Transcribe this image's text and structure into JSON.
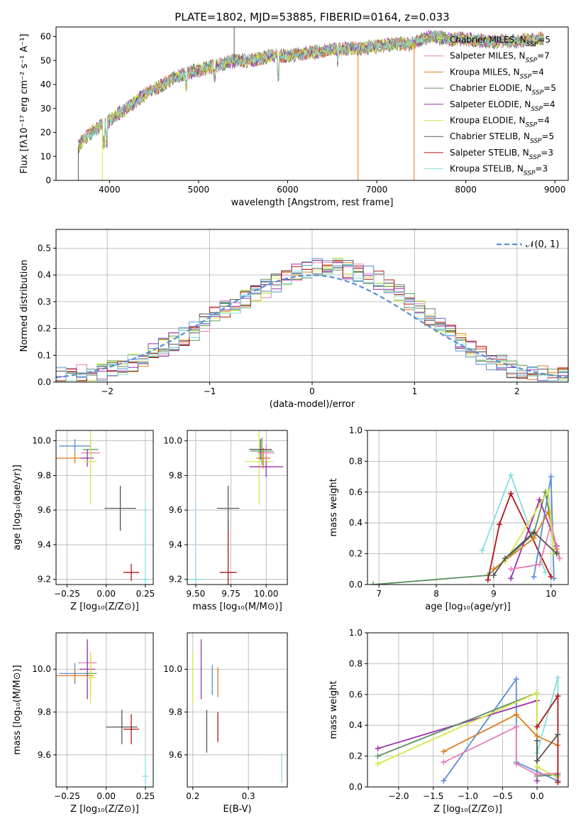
{
  "figure": {
    "title": "PLATE=1802, MJD=53885, FIBERID=0164, z=0.033"
  },
  "colors": {
    "Chabrier MILES": "#5fa35f",
    "Salpeter MILES": "#e67fb6",
    "Kroupa MILES": "#e07b1e",
    "Chabrier ELODIE": "#5c8f5c",
    "Salpeter ELODIE": "#9b2fb0",
    "Kroupa ELODIE": "#d4e84a",
    "Chabrier STELIB": "#555555",
    "Salpeter STELIB": "#b01515",
    "Kroupa STELIB": "#86dde0",
    "blue_line": "#5b8dd6",
    "grid": "#b0b0b0"
  },
  "chart_data": [
    {
      "id": "spectrum",
      "type": "line",
      "title": "PLATE=1802, MJD=53885, FIBERID=0164, z=0.033",
      "xlabel": "wavelength [Angstrom, rest frame]",
      "ylabel": "Flux [fλ10⁻¹⁷ erg cm⁻² s⁻¹ A⁻¹]",
      "xlim": [
        3400,
        9150
      ],
      "ylim": [
        0,
        64
      ],
      "xticks": [
        4000,
        5000,
        6000,
        7000,
        8000,
        9000
      ],
      "yticks": [
        0,
        10,
        20,
        30,
        40,
        50,
        60
      ],
      "grid": false,
      "legend_position": "top-right",
      "continuum": {
        "x": [
          3650,
          3700,
          3800,
          3900,
          4000,
          4100,
          4200,
          4300,
          4400,
          4500,
          4600,
          4700,
          4800,
          4900,
          5000,
          5200,
          5400,
          5600,
          5800,
          6000,
          6200,
          6400,
          6600,
          6800,
          7000,
          7200,
          7400,
          7600,
          7800,
          8000,
          8200,
          8400,
          8600,
          8800
        ],
        "y": [
          14,
          17,
          20,
          23,
          25,
          28,
          30,
          33,
          36,
          38,
          40,
          42,
          44,
          45,
          46,
          48,
          50,
          50,
          52,
          52,
          53,
          54,
          55,
          55,
          56,
          57,
          57,
          60,
          59,
          59,
          58,
          58,
          58,
          59
        ]
      },
      "dropouts": [
        {
          "x": 3650,
          "y": 0
        },
        {
          "x": 3920,
          "y": 0
        },
        {
          "x": 5400,
          "y": 64
        },
        {
          "x": 6790,
          "y": 0
        },
        {
          "x": 7420,
          "y": 0
        }
      ],
      "series": [
        {
          "name": "Chabrier MILES, N_SSP=5",
          "label_main": "Chabrier MILES, N",
          "label_sub": "SSP",
          "label_end": "=5",
          "color_key": "Chabrier MILES"
        },
        {
          "name": "Salpeter MILES, N_SSP=7",
          "label_main": "Salpeter MILES, N",
          "label_sub": "SSP",
          "label_end": "=7",
          "color_key": "Salpeter MILES"
        },
        {
          "name": "Kroupa MILES, N_SSP=4",
          "label_main": "Kroupa MILES, N",
          "label_sub": "SSP",
          "label_end": "=4",
          "color_key": "Kroupa MILES"
        },
        {
          "name": "Chabrier ELODIE, N_SSP=5",
          "label_main": "Chabrier ELODIE, N",
          "label_sub": "SSP",
          "label_end": "=5",
          "color_key": "Chabrier ELODIE"
        },
        {
          "name": "Salpeter ELODIE, N_SSP=4",
          "label_main": "Salpeter ELODIE, N",
          "label_sub": "SSP",
          "label_end": "=4",
          "color_key": "Salpeter ELODIE"
        },
        {
          "name": "Kroupa ELODIE, N_SSP=4",
          "label_main": "Kroupa ELODIE, N",
          "label_sub": "SSP",
          "label_end": "=4",
          "color_key": "Kroupa ELODIE"
        },
        {
          "name": "Chabrier STELIB, N_SSP=5",
          "label_main": "Chabrier STELIB, N",
          "label_sub": "SSP",
          "label_end": "=5",
          "color_key": "Chabrier STELIB"
        },
        {
          "name": "Salpeter STELIB, N_SSP=3",
          "label_main": "Salpeter STELIB, N",
          "label_sub": "SSP",
          "label_end": "=3",
          "color_key": "Salpeter STELIB"
        },
        {
          "name": "Kroupa STELIB, N_SSP=3",
          "label_main": "Kroupa STELIB, N",
          "label_sub": "SSP",
          "label_end": "=3",
          "color_key": "Kroupa STELIB"
        }
      ]
    },
    {
      "id": "residuals",
      "type": "line",
      "xlabel": "(data-model)/error",
      "ylabel": "Normed distribution",
      "xlim": [
        -2.5,
        2.5
      ],
      "ylim": [
        0,
        0.57
      ],
      "xticks": [
        -2,
        -1,
        0,
        1,
        2
      ],
      "xtick_labels": [
        "−2",
        "−1",
        "0",
        "1",
        "2"
      ],
      "yticks": [
        0.0,
        0.1,
        0.2,
        0.3,
        0.4,
        0.5
      ],
      "grid": true,
      "legend_position": "top-right",
      "legend": [
        {
          "name": "𝒩(0, 1)",
          "style": "dashed",
          "color_key": "blue_line"
        }
      ],
      "bin_width": 0.1,
      "bin_start": -2.5,
      "histogram_base": [
        0.02,
        0.02,
        0.03,
        0.03,
        0.04,
        0.05,
        0.06,
        0.07,
        0.09,
        0.11,
        0.13,
        0.15,
        0.17,
        0.19,
        0.22,
        0.25,
        0.27,
        0.29,
        0.31,
        0.33,
        0.35,
        0.37,
        0.39,
        0.41,
        0.42,
        0.43,
        0.43,
        0.43,
        0.42,
        0.41,
        0.4,
        0.38,
        0.36,
        0.33,
        0.3,
        0.27,
        0.24,
        0.21,
        0.18,
        0.15,
        0.12,
        0.1,
        0.08,
        0.07,
        0.05,
        0.04,
        0.03,
        0.03,
        0.02,
        0.02
      ]
    },
    {
      "id": "age_vs_Z",
      "type": "scatter",
      "xlabel": "Z [log₁₀(Z/Z⊙)]",
      "ylabel": "age  [log₁₀(age/yr)]",
      "xlim": [
        -0.32,
        0.3
      ],
      "ylim": [
        9.17,
        10.06
      ],
      "xticks": [
        -0.25,
        0.0,
        0.25
      ],
      "xtick_labels": [
        "−0.25",
        "0.00",
        "0.25"
      ],
      "yticks": [
        9.2,
        9.4,
        9.6,
        9.8,
        10.0
      ],
      "grid": true,
      "points": [
        {
          "color_key": "blue_line",
          "x": -0.2,
          "y": 9.97,
          "xerr": 0.1,
          "yerr": 0.04
        },
        {
          "color_key": "Kroupa MILES",
          "x": -0.2,
          "y": 9.9,
          "xerr": 0.12,
          "yerr": 0.03
        },
        {
          "color_key": "Salpeter MILES",
          "x": -0.1,
          "y": 9.93,
          "xerr": 0.06,
          "yerr": 0.04
        },
        {
          "color_key": "Chabrier MILES",
          "x": -0.1,
          "y": 9.95,
          "xerr": 0.05,
          "yerr": 0.06
        },
        {
          "color_key": "Salpeter ELODIE",
          "x": -0.12,
          "y": 9.9,
          "xerr": 0.04,
          "yerr": 0.05
        },
        {
          "color_key": "Kroupa ELODIE",
          "x": -0.1,
          "y": 9.88,
          "xerr": 0.04,
          "yerr": 0.25
        },
        {
          "color_key": "Chabrier STELIB",
          "x": 0.09,
          "y": 9.61,
          "xerr": 0.1,
          "yerr": 0.13
        },
        {
          "color_key": "Salpeter STELIB",
          "x": 0.16,
          "y": 9.24,
          "xerr": 0.05,
          "yerr": 0.05
        },
        {
          "color_key": "Kroupa STELIB",
          "x": 0.25,
          "y": 9.2,
          "xerr": 0.02,
          "yerr": 0.45
        }
      ]
    },
    {
      "id": "age_vs_mass",
      "type": "scatter",
      "xlabel": "mass [log₁₀(M/M⊙)]",
      "xlim": [
        9.44,
        10.15
      ],
      "ylim": [
        9.17,
        10.06
      ],
      "xticks": [
        9.5,
        9.75,
        10.0
      ],
      "xtick_labels": [
        "9.50",
        "9.75",
        "10.00"
      ],
      "yticks": [
        9.2,
        9.4,
        9.6,
        9.8,
        10.0
      ],
      "grid": true,
      "points": [
        {
          "color_key": "Kroupa STELIB",
          "x": 9.5,
          "y": 9.2,
          "xerr": 0.06,
          "yerr": 0.45
        },
        {
          "color_key": "Salpeter STELIB",
          "x": 9.73,
          "y": 9.24,
          "xerr": 0.06,
          "yerr": 0.3
        },
        {
          "color_key": "Chabrier STELIB",
          "x": 9.73,
          "y": 9.61,
          "xerr": 0.08,
          "yerr": 0.13
        },
        {
          "color_key": "Kroupa ELODIE",
          "x": 9.95,
          "y": 9.88,
          "xerr": 0.1,
          "yerr": 0.25
        },
        {
          "color_key": "Salpeter ELODIE",
          "x": 10.0,
          "y": 9.85,
          "xerr": 0.12,
          "yerr": 0.06
        },
        {
          "color_key": "Chabrier MILES",
          "x": 9.97,
          "y": 9.94,
          "xerr": 0.08,
          "yerr": 0.08
        },
        {
          "color_key": "Salpeter MILES",
          "x": 10.0,
          "y": 9.93,
          "xerr": 0.06,
          "yerr": 0.05
        },
        {
          "color_key": "Kroupa MILES",
          "x": 9.98,
          "y": 9.9,
          "xerr": 0.05,
          "yerr": 0.06
        },
        {
          "color_key": "Chabrier STELIB",
          "x": 9.96,
          "y": 9.95,
          "xerr": 0.08,
          "yerr": 0.06
        }
      ]
    },
    {
      "id": "massweight_vs_age",
      "type": "line",
      "xlabel": "age  [log₁₀(age/yr)]",
      "ylabel": "mass weight",
      "xlim": [
        6.8,
        10.3
      ],
      "ylim": [
        0,
        1.0
      ],
      "xticks": [
        7,
        8,
        9,
        10
      ],
      "yticks": [
        0.0,
        0.2,
        0.4,
        0.6,
        0.8,
        1.0
      ],
      "grid": true,
      "series": [
        {
          "color_key": "Chabrier ELODIE",
          "x": [
            6.9,
            8.9,
            9.7,
            9.9,
            10.1
          ],
          "y": [
            0.0,
            0.06,
            0.33,
            0.6,
            0.21
          ]
        },
        {
          "color_key": "Kroupa STELIB",
          "x": [
            8.8,
            9.3,
            9.9
          ],
          "y": [
            0.22,
            0.71,
            0.08
          ]
        },
        {
          "color_key": "Salpeter STELIB",
          "x": [
            8.9,
            9.1,
            9.3,
            10.0
          ],
          "y": [
            0.03,
            0.39,
            0.59,
            0.05
          ]
        },
        {
          "color_key": "Salpeter ELODIE",
          "x": [
            9.3,
            9.8,
            10.1
          ],
          "y": [
            0.04,
            0.55,
            0.25
          ]
        },
        {
          "color_key": "blue_line",
          "x": [
            9.7,
            10.0,
            10.05
          ],
          "y": [
            0.05,
            0.7,
            0.04
          ]
        },
        {
          "color_key": "Kroupa MILES",
          "x": [
            9.0,
            9.7,
            9.95,
            10.1
          ],
          "y": [
            0.1,
            0.3,
            0.47,
            0.23
          ]
        },
        {
          "color_key": "Salpeter MILES",
          "x": [
            9.3,
            9.8,
            10.0,
            10.15
          ],
          "y": [
            0.1,
            0.13,
            0.39,
            0.17
          ]
        },
        {
          "color_key": "Kroupa ELODIE",
          "x": [
            9.2,
            9.95,
            10.05
          ],
          "y": [
            0.15,
            0.61,
            0.2
          ]
        },
        {
          "color_key": "Chabrier STELIB",
          "x": [
            9.0,
            9.2,
            9.7,
            10.1
          ],
          "y": [
            0.06,
            0.17,
            0.34,
            0.2
          ]
        }
      ]
    },
    {
      "id": "mass_vs_Z",
      "type": "scatter",
      "xlabel": "Z [log₁₀(Z/Z⊙)]",
      "ylabel": "mass [log₁₀(M/M⊙)]",
      "xlim": [
        -0.32,
        0.3
      ],
      "ylim": [
        9.45,
        10.17
      ],
      "xticks": [
        -0.25,
        0.0,
        0.25
      ],
      "xtick_labels": [
        "−0.25",
        "0.00",
        "0.25"
      ],
      "yticks": [
        9.6,
        9.8,
        10.0
      ],
      "grid": true,
      "points": [
        {
          "color_key": "blue_line",
          "x": -0.2,
          "y": 9.98,
          "xerr": 0.1,
          "yerr": 0.05
        },
        {
          "color_key": "Kroupa MILES",
          "x": -0.2,
          "y": 9.97,
          "xerr": 0.12,
          "yerr": 0.03
        },
        {
          "color_key": "Salpeter MILES",
          "x": -0.12,
          "y": 10.03,
          "xerr": 0.06,
          "yerr": 0.06
        },
        {
          "color_key": "Salpeter ELODIE",
          "x": -0.12,
          "y": 10.0,
          "xerr": 0.05,
          "yerr": 0.14
        },
        {
          "color_key": "Chabrier MILES",
          "x": -0.1,
          "y": 9.98,
          "xerr": 0.04,
          "yerr": 0.1
        },
        {
          "color_key": "Kroupa ELODIE",
          "x": -0.1,
          "y": 9.96,
          "xerr": 0.03,
          "yerr": 0.12
        },
        {
          "color_key": "Chabrier STELIB",
          "x": 0.1,
          "y": 9.73,
          "xerr": 0.1,
          "yerr": 0.08
        },
        {
          "color_key": "Salpeter STELIB",
          "x": 0.16,
          "y": 9.72,
          "xerr": 0.05,
          "yerr": 0.07
        },
        {
          "color_key": "Kroupa STELIB",
          "x": 0.25,
          "y": 9.5,
          "xerr": 0.02,
          "yerr": 0.1
        }
      ]
    },
    {
      "id": "mass_vs_EBV",
      "type": "scatter",
      "xlabel": "E(B-V)",
      "xlim": [
        0.19,
        0.37
      ],
      "ylim": [
        9.45,
        10.17
      ],
      "xticks": [
        0.2,
        0.3
      ],
      "xtick_labels": [
        "0.2",
        "0.3"
      ],
      "yticks": [
        9.6,
        9.8,
        10.0
      ],
      "grid": true,
      "points": [
        {
          "color_key": "Kroupa ELODIE",
          "x": 0.2,
          "y": 9.96,
          "xerr": 0.0,
          "yerr": 0.12
        },
        {
          "color_key": "Salpeter ELODIE",
          "x": 0.215,
          "y": 10.0,
          "xerr": 0.0,
          "yerr": 0.14
        },
        {
          "color_key": "Chabrier STELIB",
          "x": 0.225,
          "y": 9.71,
          "xerr": 0.0,
          "yerr": 0.1
        },
        {
          "color_key": "blue_line",
          "x": 0.235,
          "y": 9.95,
          "xerr": 0.0,
          "yerr": 0.07
        },
        {
          "color_key": "Kroupa MILES",
          "x": 0.245,
          "y": 9.94,
          "xerr": 0.0,
          "yerr": 0.07
        },
        {
          "color_key": "Salpeter STELIB",
          "x": 0.245,
          "y": 9.73,
          "xerr": 0.0,
          "yerr": 0.07
        },
        {
          "color_key": "Kroupa STELIB",
          "x": 0.36,
          "y": 9.54,
          "xerr": 0.0,
          "yerr": 0.07
        }
      ]
    },
    {
      "id": "massweight_vs_Z",
      "type": "line",
      "xlabel": "Z [log₁₀(Z/Z⊙)]",
      "ylabel": "mass weight",
      "xlim": [
        -2.45,
        0.45
      ],
      "ylim": [
        0,
        1.0
      ],
      "xticks": [
        -2.0,
        -1.5,
        -1.0,
        -0.5,
        0.0
      ],
      "xtick_labels": [
        "−2.0",
        "−1.5",
        "−1.0",
        "−0.5",
        "0.0"
      ],
      "yticks": [
        0.0,
        0.2,
        0.4,
        0.6,
        0.8,
        1.0
      ],
      "grid": true,
      "series": [
        {
          "color_key": "blue_line",
          "x": [
            -1.35,
            -0.3,
            -0.3,
            0.3
          ],
          "y": [
            0.04,
            0.7,
            0.16,
            0.04
          ]
        },
        {
          "color_key": "Salpeter ELODIE",
          "x": [
            -2.3,
            0.0,
            0.0
          ],
          "y": [
            0.25,
            0.56,
            0.04
          ]
        },
        {
          "color_key": "Chabrier ELODIE",
          "x": [
            -2.3,
            0.0,
            0.0,
            0.3
          ],
          "y": [
            0.2,
            0.61,
            0.07,
            0.08
          ]
        },
        {
          "color_key": "Kroupa ELODIE",
          "x": [
            -2.3,
            0.0,
            0.0,
            0.3
          ],
          "y": [
            0.15,
            0.61,
            0.13,
            0.06
          ]
        },
        {
          "color_key": "Kroupa MILES",
          "x": [
            -1.35,
            -0.3,
            0.0,
            0.3
          ],
          "y": [
            0.23,
            0.47,
            0.33,
            0.27
          ]
        },
        {
          "color_key": "Salpeter MILES",
          "x": [
            -1.35,
            -0.3,
            -0.3,
            0.0,
            0.3
          ],
          "y": [
            0.16,
            0.39,
            0.15,
            0.08,
            0.09
          ]
        },
        {
          "color_key": "Kroupa STELIB",
          "x": [
            0.0,
            0.3,
            0.3
          ],
          "y": [
            0.22,
            0.71,
            0.07
          ]
        },
        {
          "color_key": "Salpeter STELIB",
          "x": [
            0.0,
            0.3,
            0.3
          ],
          "y": [
            0.39,
            0.59,
            0.03
          ]
        },
        {
          "color_key": "Chabrier STELIB",
          "x": [
            0.0,
            0.0,
            0.3
          ],
          "y": [
            0.3,
            0.17,
            0.34
          ]
        }
      ]
    }
  ]
}
